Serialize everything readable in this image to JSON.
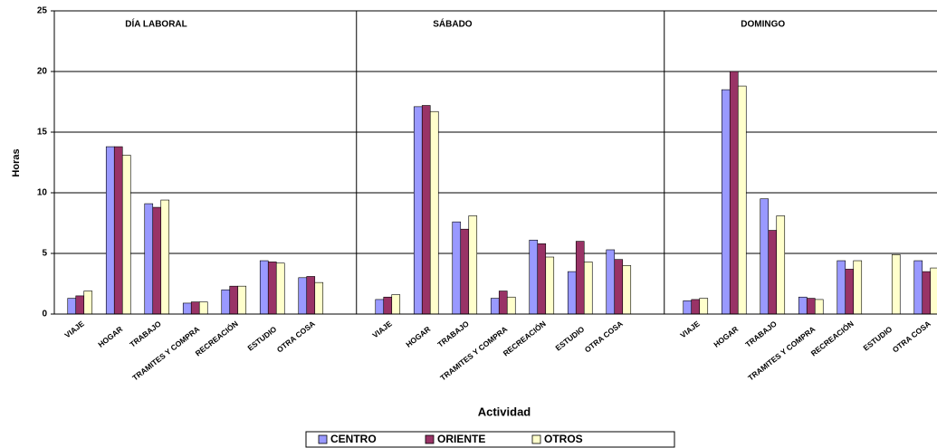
{
  "chart_data": {
    "type": "bar",
    "y_label": "Horas",
    "x_label": "Actividad",
    "annotations": [
      "DÍA LABORAL",
      "SÁBADO",
      "DOMINGO"
    ],
    "categories": [
      "VIAJE",
      "HOGAR",
      "TRABAJO",
      "TRAMITES Y COMPRA",
      "RECREACIÓN",
      "ESTUDIO",
      "OTRA COSA",
      null,
      "VIAJE",
      "HOGAR",
      "TRABAJO",
      "TRAMITES Y COMPRA",
      "RECREACIÓN",
      "ESTUDIO",
      "OTRA COSA",
      null,
      "VIAJE",
      "HOGAR",
      "TRABAJO",
      "TRAMITES Y COMPRA",
      "RECREACIÓN",
      "ESTUDIO",
      "OTRA COSA"
    ],
    "series": [
      {
        "name": "CENTRO",
        "color": "#9999ff",
        "values": [
          1.3,
          13.8,
          9.1,
          0.9,
          2.0,
          4.4,
          3.0,
          null,
          1.2,
          17.1,
          7.6,
          1.3,
          6.1,
          3.5,
          5.3,
          null,
          1.1,
          18.5,
          9.5,
          1.4,
          4.4,
          0,
          4.4
        ]
      },
      {
        "name": "ORIENTE",
        "color": "#993366",
        "values": [
          1.5,
          13.8,
          8.8,
          1.0,
          2.3,
          4.3,
          3.1,
          null,
          1.4,
          17.2,
          7.0,
          1.9,
          5.8,
          6.0,
          4.5,
          null,
          1.2,
          20.0,
          6.9,
          1.3,
          3.7,
          0,
          3.5
        ]
      },
      {
        "name": "OTROS",
        "color": "#ffffcc",
        "values": [
          1.9,
          13.1,
          9.4,
          1.0,
          2.3,
          4.2,
          2.6,
          null,
          1.6,
          16.7,
          8.1,
          1.4,
          4.7,
          4.3,
          4.0,
          null,
          1.3,
          18.8,
          8.1,
          1.2,
          4.4,
          4.9,
          3.8
        ]
      }
    ],
    "ylim": [
      0,
      25
    ],
    "yticks": [
      0,
      5,
      10,
      15,
      20,
      25
    ],
    "grid": true
  }
}
